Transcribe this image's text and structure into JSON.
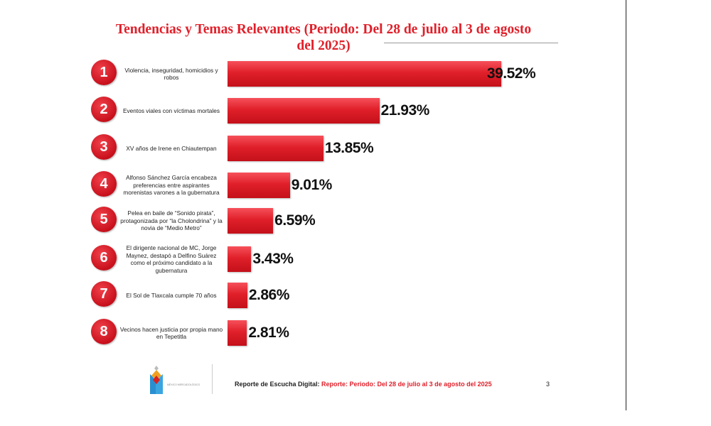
{
  "title": "Tendencias y Temas Relevantes (Periodo: Del 28 de julio al 3 de agosto del 2025)",
  "items": [
    {
      "rank": "1",
      "label": "Violencia, inseguridad, homicidios y robos",
      "value": 39.52,
      "pct": "39.52%"
    },
    {
      "rank": "2",
      "label": "Eventos viales con víctimas mortales",
      "value": 21.93,
      "pct": "21.93%"
    },
    {
      "rank": "3",
      "label": "XV años de Irene en Chiautempan",
      "value": 13.85,
      "pct": "13.85%"
    },
    {
      "rank": "4",
      "label": "Alfonso Sánchez García encabeza preferencias entre aspirantes morenistas varones a la gubernatura",
      "value": 9.01,
      "pct": "9.01%"
    },
    {
      "rank": "5",
      "label": "Pelea en baile de “Sonido pirata”, protagonizada por “la Cholondrina” y la novia de “Medio Metro”",
      "value": 6.59,
      "pct": "6.59%"
    },
    {
      "rank": "6",
      "label": "El dirigente nacional de MC, Jorge Maynez, destapó a Delfino Suárez como el próximo candidato a la gubernatura",
      "value": 3.43,
      "pct": "3.43%"
    },
    {
      "rank": "7",
      "label": "El Sol de Tlaxcala cumple 70 años",
      "value": 2.86,
      "pct": "2.86%"
    },
    {
      "rank": "8",
      "label": "Vecinos hacen justicia por propia mano en Tepetitla",
      "value": 2.81,
      "pct": "2.81%"
    }
  ],
  "footer": {
    "prefix": "Reporte de Escucha Digital:",
    "period": "Reporte: Periodo: Del 28 de julio al 3 de agosto del 2025",
    "page": "3"
  },
  "logo_text": "MÉXICO MERCADOLÓGICO",
  "colors": {
    "accent": "#e0202a"
  }
}
